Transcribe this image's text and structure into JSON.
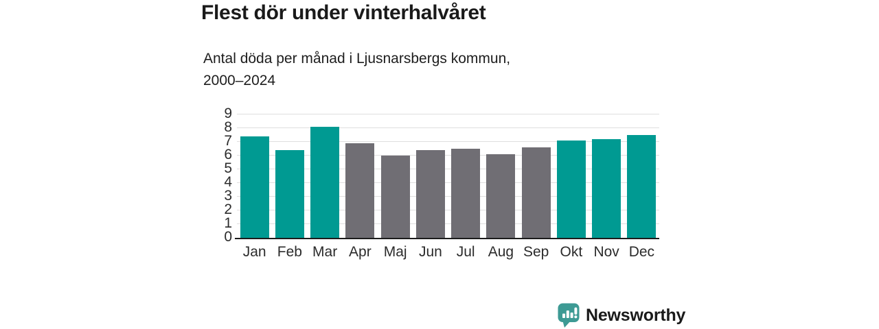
{
  "header": {
    "title": "Flest dör under vinterhalvåret",
    "subtitle_lines": [
      "Antal döda per månad i Ljusnarsbergs kommun,",
      "2000–2024"
    ]
  },
  "chart_data": {
    "type": "bar",
    "title": "Flest dör under vinterhalvåret",
    "subtitle": "Antal döda per månad i Ljusnarsbergs kommun, 2000–2024",
    "categories": [
      "Jan",
      "Feb",
      "Mar",
      "Apr",
      "Maj",
      "Jun",
      "Jul",
      "Aug",
      "Sep",
      "Okt",
      "Nov",
      "Dec"
    ],
    "values": [
      7.4,
      6.4,
      8.1,
      6.9,
      6.0,
      6.4,
      6.5,
      6.1,
      6.6,
      7.1,
      7.2,
      7.5
    ],
    "bar_colors": [
      "#009a92",
      "#009a92",
      "#009a92",
      "#706e74",
      "#706e74",
      "#706e74",
      "#706e74",
      "#706e74",
      "#706e74",
      "#009a92",
      "#009a92",
      "#009a92"
    ],
    "palette": {
      "winter_months": "#009a92",
      "summer_months": "#706e74"
    },
    "y_ticks": [
      0,
      1,
      2,
      3,
      4,
      5,
      6,
      7,
      8,
      9
    ],
    "ylim": [
      0,
      9
    ],
    "xlabel": "",
    "ylabel": "",
    "grid": "horizontal",
    "legend": "none"
  },
  "branding": {
    "logo_text": "Newsworthy",
    "logo_color": "#3d9a94",
    "logo_icon": "bar-chart-speech-bubble-icon"
  }
}
